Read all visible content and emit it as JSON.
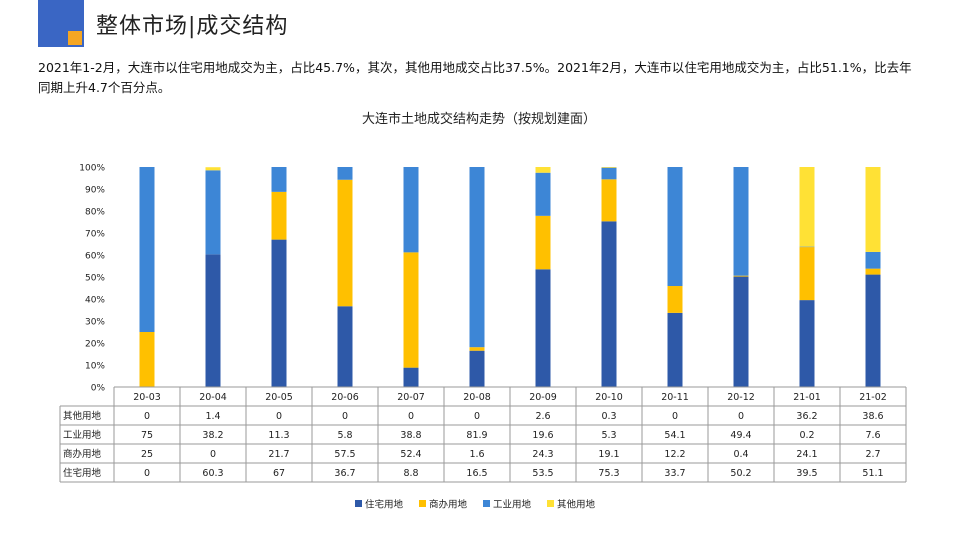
{
  "header": {
    "title": "整体市场|成交结构"
  },
  "summary": {
    "text": "2021年1-2月，大连市以住宅用地成交为主，占比45.7%，其次，其他用地成交占比37.5%。2021年2月，大连市以住宅用地成交为主，占比51.1%，比去年同期上升4.7个百分点。"
  },
  "chart_data": {
    "type": "bar",
    "stacked": true,
    "percent_stacked": true,
    "title": "大连市土地成交结构走势（按规划建面）",
    "categories": [
      "20-03",
      "20-04",
      "20-05",
      "20-06",
      "20-07",
      "20-08",
      "20-09",
      "20-10",
      "20-11",
      "20-12",
      "21-01",
      "21-02"
    ],
    "y_ticks": [
      "0%",
      "10%",
      "20%",
      "30%",
      "40%",
      "50%",
      "60%",
      "70%",
      "80%",
      "90%",
      "100%"
    ],
    "ylim": [
      0,
      100
    ],
    "series": [
      {
        "name": "住宅用地",
        "color": "#2e59a8",
        "values": [
          0,
          60.3,
          67,
          36.7,
          8.8,
          16.5,
          53.5,
          75.3,
          33.7,
          50.2,
          39.5,
          51.1
        ]
      },
      {
        "name": "商办用地",
        "color": "#ffc000",
        "values": [
          25,
          0,
          21.7,
          57.5,
          52.4,
          1.6,
          24.3,
          19.1,
          12.2,
          0.4,
          24.1,
          2.7
        ]
      },
      {
        "name": "工业用地",
        "color": "#3d86d6",
        "values": [
          75,
          38.2,
          11.3,
          5.8,
          38.8,
          81.9,
          19.6,
          5.3,
          54.1,
          49.4,
          0.2,
          7.6
        ]
      },
      {
        "name": "其他用地",
        "color": "#ffe135",
        "values": [
          0,
          1.4,
          0,
          0,
          0,
          0,
          2.6,
          0.3,
          0,
          0,
          36.2,
          38.6
        ]
      }
    ],
    "table_rows": [
      {
        "label": "其他用地",
        "values": [
          "0",
          "1.4",
          "0",
          "0",
          "0",
          "0",
          "2.6",
          "0.3",
          "0",
          "0",
          "36.2",
          "38.6"
        ]
      },
      {
        "label": "工业用地",
        "values": [
          "75",
          "38.2",
          "11.3",
          "5.8",
          "38.8",
          "81.9",
          "19.6",
          "5.3",
          "54.1",
          "49.4",
          "0.2",
          "7.6"
        ]
      },
      {
        "label": "商办用地",
        "values": [
          "25",
          "0",
          "21.7",
          "57.5",
          "52.4",
          "1.6",
          "24.3",
          "19.1",
          "12.2",
          "0.4",
          "24.1",
          "2.7"
        ]
      },
      {
        "label": "住宅用地",
        "values": [
          "0",
          "60.3",
          "67",
          "36.7",
          "8.8",
          "16.5",
          "53.5",
          "75.3",
          "33.7",
          "50.2",
          "39.5",
          "51.1"
        ]
      }
    ],
    "legend": [
      "住宅用地",
      "商办用地",
      "工业用地",
      "其他用地"
    ],
    "legend_position": "bottom"
  }
}
